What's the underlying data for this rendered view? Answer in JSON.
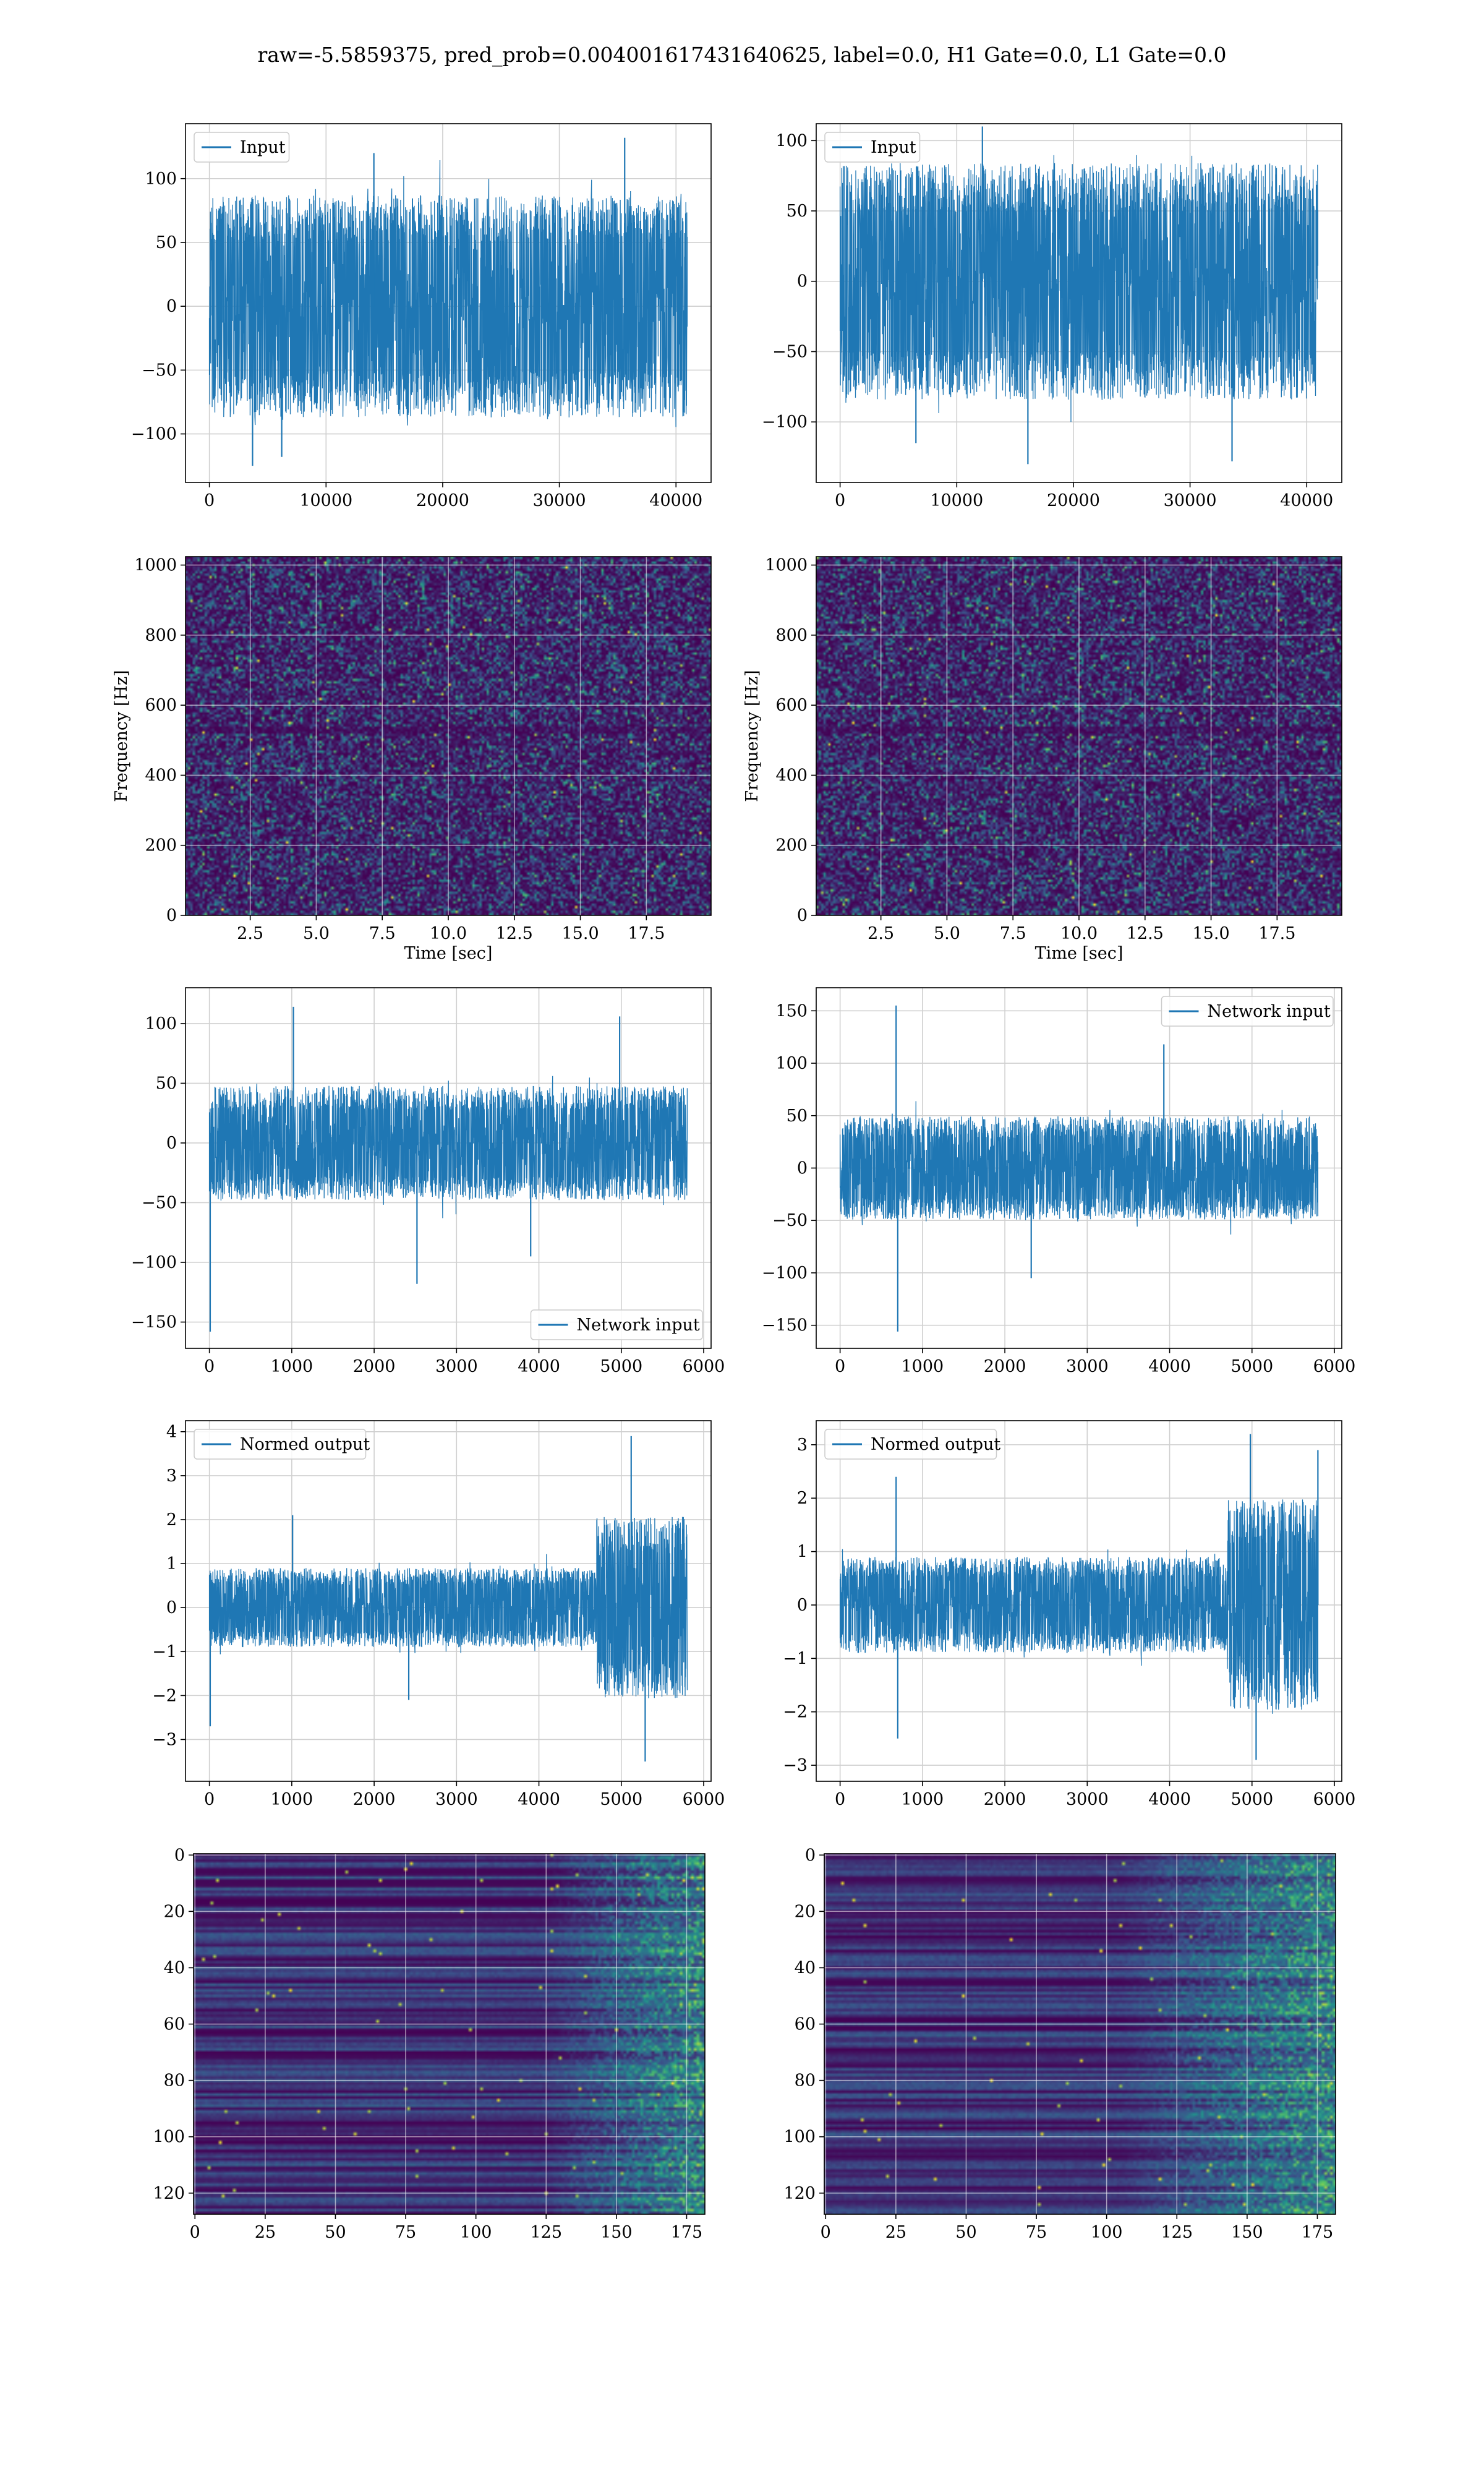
{
  "figure": {
    "suptitle": "raw=-5.5859375, pred_prob=0.004001617431640625, label=0.0, H1 Gate=0.0, L1 Gate=0.0"
  },
  "colors": {
    "line": "#1f77b4",
    "grid": "#d0d0d0",
    "viridis_low": "#440154",
    "viridis_mid": "#21918c",
    "viridis_high": "#fde725"
  },
  "chart_data": [
    {
      "id": "input-h1",
      "type": "line",
      "signal": "noise",
      "series": [
        {
          "name": "Input"
        }
      ],
      "x_range": [
        0,
        40960
      ],
      "amplitude": 60,
      "seed": 11,
      "spikes": [
        [
          3700,
          -125
        ],
        [
          14100,
          120
        ],
        [
          35600,
          132
        ],
        [
          6200,
          -118
        ]
      ],
      "xlim": [
        -2048,
        43008
      ],
      "ylim": [
        -138,
        143
      ],
      "xticks": [
        0,
        10000,
        20000,
        30000,
        40000
      ],
      "xtick_labels": [
        "0",
        "10000",
        "20000",
        "30000",
        "40000"
      ],
      "yticks": [
        -100,
        -50,
        0,
        50,
        100
      ],
      "ytick_labels": [
        "−100",
        "−50",
        "0",
        "50",
        "100"
      ],
      "xlabel": "",
      "ylabel": "",
      "legend": "upper left",
      "grid": true
    },
    {
      "id": "input-l1",
      "type": "line",
      "signal": "noise",
      "series": [
        {
          "name": "Input"
        }
      ],
      "x_range": [
        0,
        40960
      ],
      "amplitude": 58,
      "seed": 23,
      "spikes": [
        [
          16100,
          -130
        ],
        [
          33600,
          -128
        ],
        [
          6500,
          -115
        ],
        [
          12200,
          110
        ]
      ],
      "xlim": [
        -2048,
        43008
      ],
      "ylim": [
        -143,
        112
      ],
      "xticks": [
        0,
        10000,
        20000,
        30000,
        40000
      ],
      "xtick_labels": [
        "0",
        "10000",
        "20000",
        "30000",
        "40000"
      ],
      "yticks": [
        -100,
        -50,
        0,
        50,
        100
      ],
      "ytick_labels": [
        "−100",
        "−50",
        "0",
        "50",
        "100"
      ],
      "xlabel": "",
      "ylabel": "",
      "legend": "upper left",
      "grid": true
    },
    {
      "id": "spectrogram-h1",
      "type": "heatmap",
      "kind": "spectrogram",
      "seed": 31,
      "xlim": [
        0.05,
        19.95
      ],
      "ylim": [
        0,
        1024
      ],
      "xticks": [
        2.5,
        5.0,
        7.5,
        10.0,
        12.5,
        15.0,
        17.5
      ],
      "xtick_labels": [
        "2.5",
        "5.0",
        "7.5",
        "10.0",
        "12.5",
        "15.0",
        "17.5"
      ],
      "yticks": [
        0,
        200,
        400,
        600,
        800,
        1000
      ],
      "ytick_labels": [
        "0",
        "200",
        "400",
        "600",
        "800",
        "1000"
      ],
      "xlabel": "Time [sec]",
      "ylabel": "Frequency [Hz]",
      "grid": true
    },
    {
      "id": "spectrogram-l1",
      "type": "heatmap",
      "kind": "spectrogram",
      "seed": 47,
      "xlim": [
        0.05,
        19.95
      ],
      "ylim": [
        0,
        1024
      ],
      "xticks": [
        2.5,
        5.0,
        7.5,
        10.0,
        12.5,
        15.0,
        17.5
      ],
      "xtick_labels": [
        "2.5",
        "5.0",
        "7.5",
        "10.0",
        "12.5",
        "15.0",
        "17.5"
      ],
      "yticks": [
        0,
        200,
        400,
        600,
        800,
        1000
      ],
      "ytick_labels": [
        "0",
        "200",
        "400",
        "600",
        "800",
        "1000"
      ],
      "xlabel": "Time [sec]",
      "ylabel": "Frequency [Hz]",
      "grid": true
    },
    {
      "id": "network-input-h1",
      "type": "line",
      "signal": "noise",
      "series": [
        {
          "name": "Network input"
        }
      ],
      "x_range": [
        0,
        5800
      ],
      "amplitude": 33,
      "seed": 53,
      "spikes": [
        [
          10,
          -158
        ],
        [
          1020,
          114
        ],
        [
          2520,
          -118
        ],
        [
          4980,
          106
        ],
        [
          3900,
          -95
        ]
      ],
      "xlim": [
        -290,
        6090
      ],
      "ylim": [
        -172,
        130
      ],
      "xticks": [
        0,
        1000,
        2000,
        3000,
        4000,
        5000,
        6000
      ],
      "xtick_labels": [
        "0",
        "1000",
        "2000",
        "3000",
        "4000",
        "5000",
        "6000"
      ],
      "yticks": [
        -150,
        -100,
        -50,
        0,
        50,
        100
      ],
      "ytick_labels": [
        "−150",
        "−100",
        "−50",
        "0",
        "50",
        "100"
      ],
      "xlabel": "",
      "ylabel": "",
      "legend": "lower right",
      "grid": true
    },
    {
      "id": "network-input-l1",
      "type": "line",
      "signal": "noise",
      "series": [
        {
          "name": "Network input"
        }
      ],
      "x_range": [
        0,
        5800
      ],
      "amplitude": 34,
      "seed": 67,
      "spikes": [
        [
          680,
          155
        ],
        [
          700,
          -156
        ],
        [
          3930,
          118
        ],
        [
          2320,
          -105
        ]
      ],
      "xlim": [
        -290,
        6090
      ],
      "ylim": [
        -172,
        172
      ],
      "xticks": [
        0,
        1000,
        2000,
        3000,
        4000,
        5000,
        6000
      ],
      "xtick_labels": [
        "0",
        "1000",
        "2000",
        "3000",
        "4000",
        "5000",
        "6000"
      ],
      "yticks": [
        -150,
        -100,
        -50,
        0,
        50,
        100,
        150
      ],
      "ytick_labels": [
        "−150",
        "−100",
        "−50",
        "0",
        "50",
        "100",
        "150"
      ],
      "xlabel": "",
      "ylabel": "",
      "legend": "upper right",
      "grid": true
    },
    {
      "id": "normed-output-h1",
      "type": "line",
      "signal": "noise",
      "series": [
        {
          "name": "Normed output"
        }
      ],
      "x_range": [
        0,
        5800
      ],
      "amplitude": 0.62,
      "burst_start": 4700,
      "burst_gain": 2.3,
      "seed": 79,
      "spikes": [
        [
          10,
          -2.7
        ],
        [
          1010,
          2.1
        ],
        [
          2420,
          -2.1
        ],
        [
          5120,
          3.9
        ],
        [
          5290,
          -3.5
        ]
      ],
      "xlim": [
        -290,
        6090
      ],
      "ylim": [
        -3.95,
        4.25
      ],
      "xticks": [
        0,
        1000,
        2000,
        3000,
        4000,
        5000,
        6000
      ],
      "xtick_labels": [
        "0",
        "1000",
        "2000",
        "3000",
        "4000",
        "5000",
        "6000"
      ],
      "yticks": [
        -3,
        -2,
        -1,
        0,
        1,
        2,
        3,
        4
      ],
      "ytick_labels": [
        "−3",
        "−2",
        "−1",
        "0",
        "1",
        "2",
        "3",
        "4"
      ],
      "xlabel": "",
      "ylabel": "",
      "legend": "upper left",
      "grid": true
    },
    {
      "id": "normed-output-l1",
      "type": "line",
      "signal": "noise",
      "series": [
        {
          "name": "Normed output"
        }
      ],
      "x_range": [
        0,
        5800
      ],
      "amplitude": 0.62,
      "burst_start": 4700,
      "burst_gain": 2.2,
      "seed": 97,
      "spikes": [
        [
          680,
          2.4
        ],
        [
          700,
          -2.5
        ],
        [
          4980,
          3.2
        ],
        [
          5050,
          -2.9
        ],
        [
          5800,
          2.9
        ]
      ],
      "xlim": [
        -290,
        6090
      ],
      "ylim": [
        -3.3,
        3.45
      ],
      "xticks": [
        0,
        1000,
        2000,
        3000,
        4000,
        5000,
        6000
      ],
      "xtick_labels": [
        "0",
        "1000",
        "2000",
        "3000",
        "4000",
        "5000",
        "6000"
      ],
      "yticks": [
        -3,
        -2,
        -1,
        0,
        1,
        2,
        3
      ],
      "ytick_labels": [
        "−3",
        "−2",
        "−1",
        "0",
        "1",
        "2",
        "3"
      ],
      "xlabel": "",
      "ylabel": "",
      "legend": "upper left",
      "grid": true
    },
    {
      "id": "feature-map-h1",
      "type": "heatmap",
      "kind": "feature-map",
      "seed": 113,
      "rows": 128,
      "cols": 182,
      "activation_start_col": 125,
      "xlim": [
        -0.5,
        181.5
      ],
      "ylim": [
        127.5,
        -0.5
      ],
      "xticks": [
        0,
        25,
        50,
        75,
        100,
        125,
        150,
        175
      ],
      "xtick_labels": [
        "0",
        "25",
        "50",
        "75",
        "100",
        "125",
        "150",
        "175"
      ],
      "yticks": [
        0,
        20,
        40,
        60,
        80,
        100,
        120
      ],
      "ytick_labels": [
        "0",
        "20",
        "40",
        "60",
        "80",
        "100",
        "120"
      ],
      "xlabel": "",
      "ylabel": "",
      "grid": true
    },
    {
      "id": "feature-map-l1",
      "type": "heatmap",
      "kind": "feature-map",
      "seed": 131,
      "rows": 128,
      "cols": 182,
      "activation_start_col": 105,
      "xlim": [
        -0.5,
        181.5
      ],
      "ylim": [
        127.5,
        -0.5
      ],
      "xticks": [
        0,
        25,
        50,
        75,
        100,
        125,
        150,
        175
      ],
      "xtick_labels": [
        "0",
        "25",
        "50",
        "75",
        "100",
        "125",
        "150",
        "175"
      ],
      "yticks": [
        0,
        20,
        40,
        60,
        80,
        100,
        120
      ],
      "ytick_labels": [
        "0",
        "20",
        "40",
        "60",
        "80",
        "100",
        "120"
      ],
      "xlabel": "",
      "ylabel": "",
      "grid": true
    }
  ]
}
